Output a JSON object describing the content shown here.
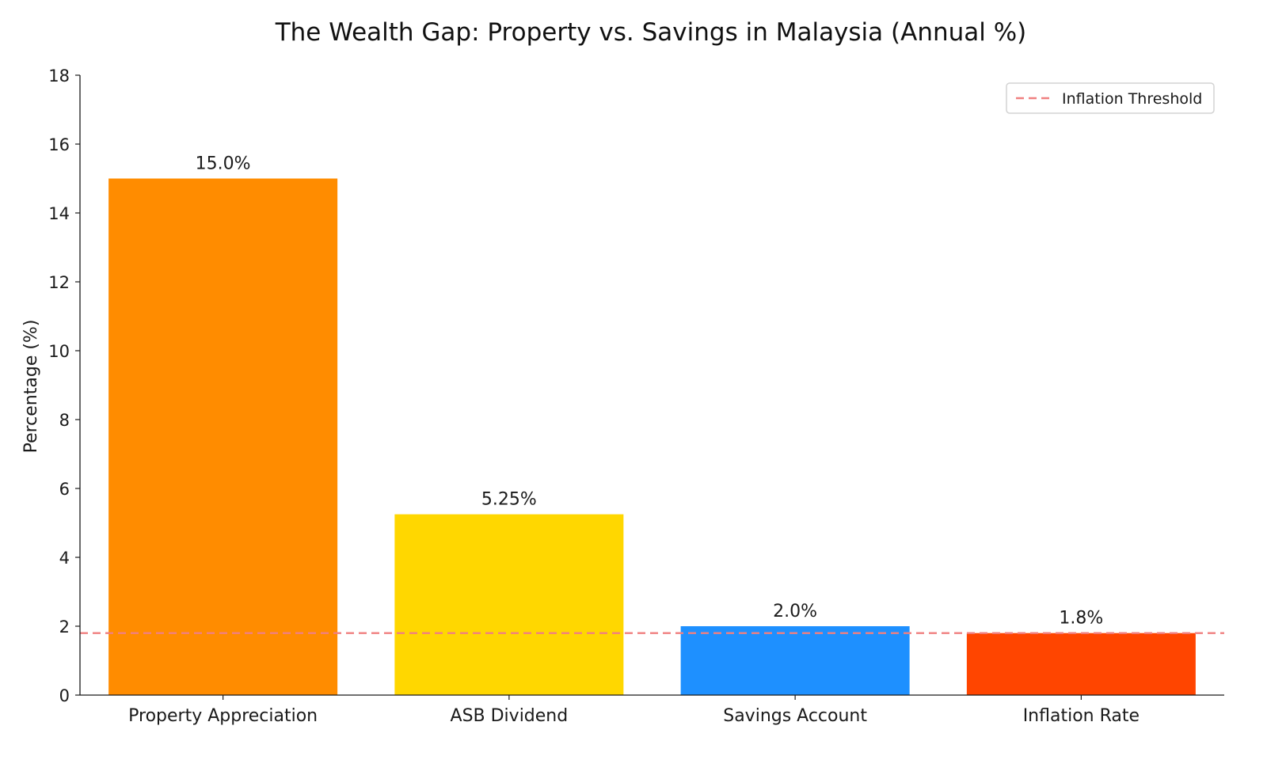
{
  "chart_data": {
    "type": "bar",
    "title": "The Wealth Gap: Property vs. Savings in Malaysia (Annual %)",
    "xlabel": "",
    "ylabel": "Percentage (%)",
    "categories": [
      "Property Appreciation",
      "ASB Dividend",
      "Savings Account",
      "Inflation Rate"
    ],
    "values": [
      15.0,
      5.25,
      2.0,
      1.8
    ],
    "value_labels": [
      "15.0%",
      "5.25%",
      "2.0%",
      "1.8%"
    ],
    "bar_colors": [
      "#FF8C00",
      "#FFD700",
      "#1E90FF",
      "#FF4500"
    ],
    "ylim": [
      0,
      18
    ],
    "yticks": [
      0,
      2,
      4,
      6,
      8,
      10,
      12,
      14,
      16,
      18
    ],
    "grid": false,
    "reference_line": {
      "value": 1.8,
      "label": "Inflation Threshold",
      "color": "#F08080",
      "style": "dashed"
    },
    "legend": {
      "placement": "top-right",
      "entries": [
        "Inflation Threshold"
      ]
    }
  }
}
